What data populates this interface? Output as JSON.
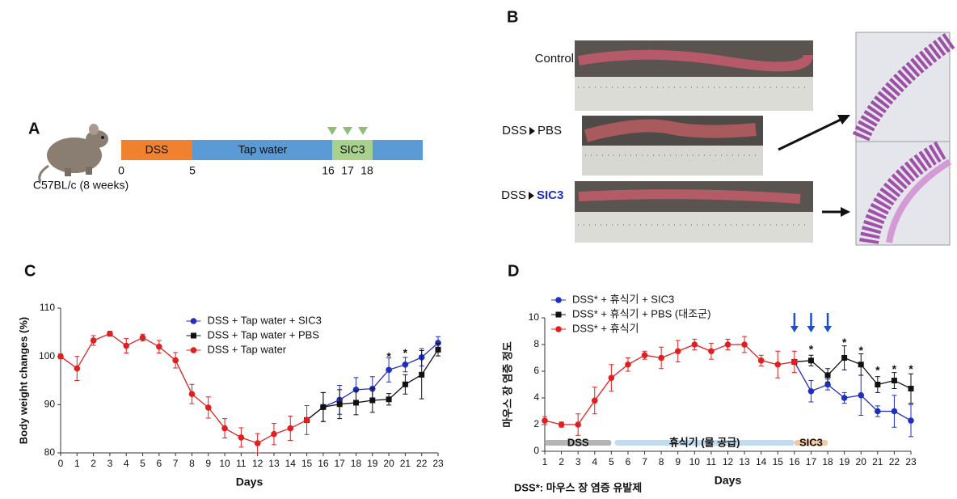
{
  "panel_labels": [
    "A",
    "B",
    "C",
    "D"
  ],
  "timeline": {
    "strain": "C57BL/c (8 weeks)",
    "segments": [
      "DSS",
      "Tap water",
      "SIC3"
    ],
    "day_labels": [
      "0",
      "5",
      "16",
      "17",
      "18"
    ]
  },
  "photos": {
    "rows": [
      {
        "label": "Control"
      },
      {
        "label": "DSS",
        "treatment": "PBS"
      },
      {
        "label": "DSS",
        "treatment": "SIC3"
      }
    ]
  },
  "chart_data": [
    {
      "type": "line",
      "xlabel": "Days",
      "ylabel": "Body weight changes (%)",
      "x": [
        0,
        1,
        2,
        3,
        4,
        5,
        6,
        7,
        8,
        9,
        10,
        11,
        12,
        13,
        14,
        15,
        16,
        17,
        18,
        19,
        20,
        21,
        22,
        23
      ],
      "xlim": [
        0,
        23
      ],
      "xticks": [
        0,
        1,
        2,
        3,
        4,
        5,
        6,
        7,
        8,
        9,
        10,
        11,
        12,
        13,
        14,
        15,
        16,
        17,
        18,
        19,
        20,
        21,
        22,
        23
      ],
      "ylim": [
        80,
        110
      ],
      "yticks": [
        80,
        90,
        100,
        110
      ],
      "legend": "upper center",
      "series": [
        {
          "name": "DSS + Tap water + SIC3",
          "color": "#1f2fbf",
          "marker": "circle",
          "values": [
            null,
            null,
            null,
            null,
            null,
            null,
            null,
            null,
            null,
            null,
            null,
            null,
            null,
            null,
            null,
            86.8,
            89.5,
            91.0,
            93.1,
            93.3,
            97.2,
            98.3,
            99.8,
            102.8
          ],
          "errors": [
            null,
            null,
            null,
            null,
            null,
            null,
            null,
            null,
            null,
            null,
            null,
            null,
            null,
            null,
            null,
            null,
            3,
            3,
            2.5,
            2.5,
            2.5,
            1.5,
            1.8,
            1.3
          ]
        },
        {
          "name": "DSS + Tap water + PBS",
          "color": "#111111",
          "marker": "square",
          "values": [
            null,
            null,
            null,
            null,
            null,
            null,
            null,
            null,
            null,
            null,
            null,
            null,
            null,
            null,
            null,
            86.8,
            89.5,
            90.1,
            90.4,
            90.9,
            91.1,
            94.2,
            96.2,
            101.4
          ],
          "errors": [
            null,
            null,
            null,
            null,
            null,
            null,
            null,
            null,
            null,
            null,
            null,
            null,
            null,
            null,
            null,
            null,
            3,
            3,
            2.5,
            2.5,
            1.2,
            2,
            5,
            1.3
          ]
        },
        {
          "name": "DSS + Tap water",
          "color": "#e02020",
          "marker": "circle",
          "values": [
            100,
            97.5,
            103.3,
            104.7,
            102.2,
            103.9,
            102,
            99.2,
            92.2,
            89.4,
            85.1,
            83.2,
            82,
            83.9,
            85.1,
            86.8,
            null,
            null,
            null,
            null,
            null,
            null,
            null,
            null
          ],
          "errors": [
            0.5,
            2.5,
            1,
            0.5,
            1.5,
            0.7,
            1.3,
            1.6,
            2,
            2.2,
            2,
            2,
            2,
            2.2,
            2.5,
            3,
            null,
            null,
            null,
            null,
            null,
            null,
            null,
            null
          ]
        }
      ],
      "annotations": [
        {
          "x": 20,
          "y": 99.8,
          "text": "*"
        },
        {
          "x": 21,
          "y": 100.6,
          "text": "*"
        }
      ]
    },
    {
      "type": "line",
      "xlabel": "Days",
      "ylabel": "마우스 장 염증 정도",
      "footnote": "DSS*: 마우스 장 염증 유발제",
      "x": [
        1,
        2,
        3,
        4,
        5,
        6,
        7,
        8,
        9,
        10,
        11,
        12,
        13,
        14,
        15,
        16,
        17,
        18,
        19,
        20,
        21,
        22,
        23
      ],
      "xlim": [
        1,
        23
      ],
      "xticks": [
        1,
        2,
        3,
        4,
        5,
        6,
        7,
        8,
        9,
        10,
        11,
        12,
        13,
        14,
        15,
        16,
        17,
        18,
        19,
        20,
        21,
        22,
        23
      ],
      "ylim": [
        0,
        10
      ],
      "yticks": [
        0,
        2,
        4,
        6,
        8,
        10
      ],
      "legend": "upper left",
      "bands": [
        {
          "label": "DSS",
          "start": 1,
          "end": 5,
          "color": "#b4b4b4"
        },
        {
          "label": "휴식기 (물 공급)",
          "start": 5.2,
          "end": 16,
          "color": "#c2dbee"
        },
        {
          "label": "SIC3",
          "start": 16,
          "end": 18,
          "color": "#f6c8a2"
        }
      ],
      "arrows_at": [
        16,
        17,
        18
      ],
      "arrow_color": "#1a4fd6",
      "series": [
        {
          "name": "DSS* + 휴식기 + SIC3",
          "color": "#1f2fbf",
          "marker": "circle",
          "values": [
            null,
            null,
            null,
            null,
            null,
            null,
            null,
            null,
            null,
            null,
            null,
            null,
            null,
            null,
            null,
            6.7,
            4.5,
            5.0,
            4.0,
            4.2,
            3.0,
            3.0,
            2.3
          ],
          "errors": [
            null,
            null,
            null,
            null,
            null,
            null,
            null,
            null,
            null,
            null,
            null,
            null,
            null,
            null,
            null,
            null,
            0.8,
            0.4,
            0.4,
            1.5,
            0.4,
            1.2,
            1.2
          ]
        },
        {
          "name": "DSS* + 휴식기 + PBS (대조군)",
          "color": "#111111",
          "marker": "square",
          "values": [
            null,
            null,
            null,
            null,
            null,
            null,
            null,
            null,
            null,
            null,
            null,
            null,
            null,
            null,
            null,
            6.7,
            6.8,
            5.7,
            7.0,
            6.5,
            5.0,
            5.3,
            4.7
          ],
          "errors": [
            null,
            null,
            null,
            null,
            null,
            null,
            null,
            null,
            null,
            null,
            null,
            null,
            null,
            null,
            null,
            null,
            0.4,
            0.5,
            0.9,
            0.8,
            0.6,
            0.6,
            1.1
          ]
        },
        {
          "name": "DSS* + 휴식기",
          "color": "#e02020",
          "marker": "circle",
          "values": [
            2.3,
            2.0,
            2.0,
            3.8,
            5.5,
            6.5,
            7.2,
            7.0,
            7.5,
            8.0,
            7.5,
            8.0,
            8.0,
            6.8,
            6.5,
            6.7,
            null,
            null,
            null,
            null,
            null,
            null,
            null
          ],
          "errors": [
            0.3,
            0.2,
            0.8,
            1,
            1,
            0.5,
            0.3,
            0.8,
            0.8,
            0.4,
            0.6,
            0.4,
            0.6,
            0.4,
            1,
            0.8,
            null,
            null,
            null,
            null,
            null,
            null,
            null
          ]
        }
      ],
      "annotations": [
        {
          "x": 17,
          "y": 7.6,
          "text": "*"
        },
        {
          "x": 19,
          "y": 8.1,
          "text": "*"
        },
        {
          "x": 20,
          "y": 7.5,
          "text": "*"
        },
        {
          "x": 21,
          "y": 6.0,
          "text": "*"
        },
        {
          "x": 22,
          "y": 6.1,
          "text": "*"
        },
        {
          "x": 23,
          "y": 6.1,
          "text": "*"
        }
      ]
    }
  ]
}
